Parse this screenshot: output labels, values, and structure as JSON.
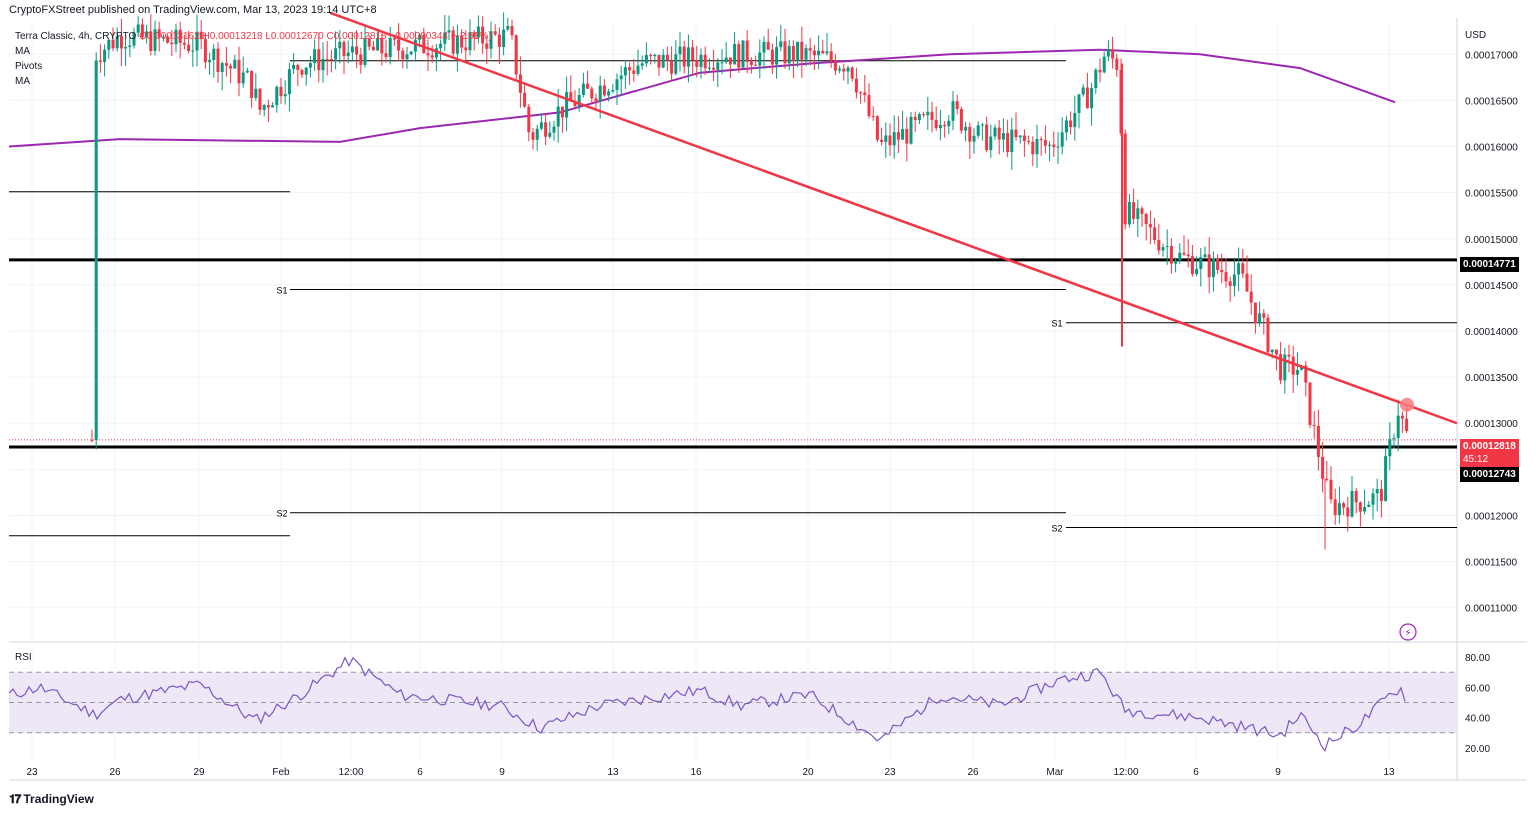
{
  "header": {
    "published_by": "CryptoFXStreet published on TradingView.com, Mar 13, 2023 19:14 UTC+8",
    "symbol_line": "Terra Classic, 4h, CRYPTO",
    "ohlc": "O0.00013162 H0.00013218 L0.00012670 C0.00012818 −0.00000344 (−2.61%)",
    "indicators": [
      "MA",
      "Pivots",
      "MA"
    ]
  },
  "footer": {
    "brand": "TradingView",
    "logo": "tv-logo-icon"
  },
  "colors": {
    "up": "#089981",
    "down": "#f23645",
    "ma": "#9c27b0",
    "trendline": "#f23645",
    "rsi": "#7e57c2",
    "rsi_band": "#ede7f6",
    "grid": "#f0f3fa"
  },
  "chart_data": [
    {
      "type": "candlestick",
      "title": "Terra Classic, 4h, CRYPTO",
      "currency": "USD",
      "y_ticks": [
        "0.00017000",
        "0.00016500",
        "0.00016000",
        "0.00015500",
        "0.00015000",
        "0.00014500",
        "0.00014000",
        "0.00013500",
        "0.00013000",
        "0.00012500",
        "0.00012000",
        "0.00011500",
        "0.00011000"
      ],
      "ylim": [
        0.0001065,
        0.0001735
      ],
      "x_ticks": [
        "23",
        "26",
        "29",
        "Feb",
        "12:00",
        "6",
        "9",
        "13",
        "16",
        "20",
        "23",
        "26",
        "Mar",
        "12:00",
        "6",
        "9",
        "13"
      ],
      "price_labels": [
        {
          "value": "0.00014771",
          "style": "support-black"
        },
        {
          "value": "0.00012818",
          "extra": "45:12",
          "style": "last-price-red"
        },
        {
          "value": "0.00012743",
          "style": "support-black"
        }
      ],
      "horizontal_levels": [
        0.00014771,
        0.00012743
      ],
      "pivot_labels": [
        "S1",
        "S2",
        "S1",
        "S2"
      ],
      "pivots": [
        {
          "label": "S1",
          "value": 0.0001445
        },
        {
          "label": "S2",
          "value": 0.0001203
        },
        {
          "label": "S1",
          "value": 0.0001409
        },
        {
          "label": "S2",
          "value": 0.0001187
        }
      ],
      "trendline": {
        "from": 0.0001745,
        "to": 0.00013
      }
    },
    {
      "type": "line",
      "title": "RSI",
      "y_ticks": [
        "80.00",
        "60.00",
        "40.00",
        "20.00"
      ],
      "ylim": [
        12,
        88
      ],
      "levels": [
        70,
        50,
        30
      ]
    }
  ]
}
